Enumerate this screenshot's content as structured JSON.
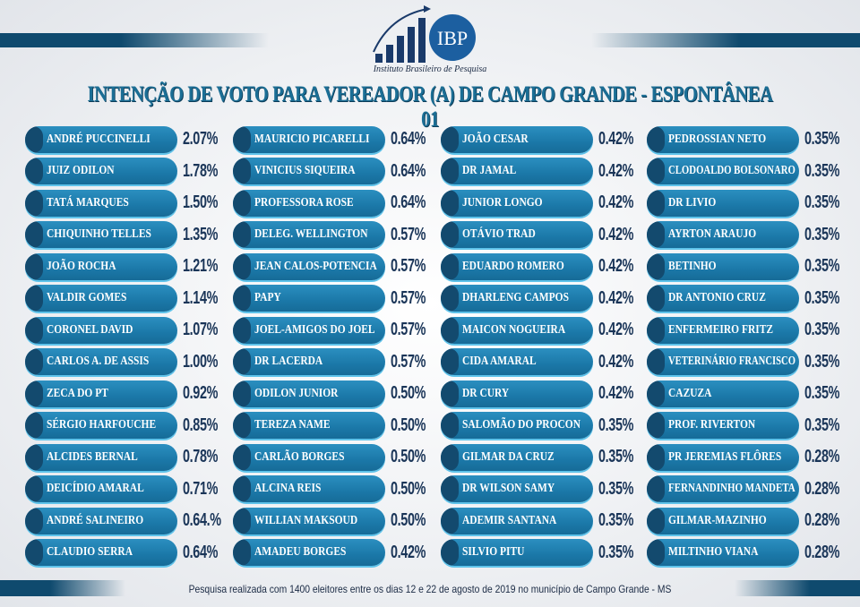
{
  "header": {
    "logo_text": "IBP",
    "institute": "Instituto Brasileiro de Pesquisa",
    "title": "INTENÇÃO DE VOTO PARA VEREADOR (A) DE CAMPO GRANDE - ESPONTÂNEA 01"
  },
  "footer": "Pesquisa realizada com 1400 eleitores entre os dias 12 e 22 de agosto de 2019 no município de Campo Grande - MS",
  "colors": {
    "pill": "#1b78a8",
    "pill_dot": "#134a6e",
    "percent": "#1a3558",
    "title": "#1b6e95",
    "bars": "#0f4a6e"
  },
  "chart_data": {
    "type": "table",
    "columns": [
      [
        [
          "ANDRÉ PUCCINELLI",
          "2.07%"
        ],
        [
          "JUIZ ODILON",
          "1.78%"
        ],
        [
          "TATÁ MARQUES",
          "1.50%"
        ],
        [
          "CHIQUINHO TELLES",
          "1.35%"
        ],
        [
          "JOÃO ROCHA",
          "1.21%"
        ],
        [
          "VALDIR GOMES",
          "1.14%"
        ],
        [
          "CORONEL DAVID",
          "1.07%"
        ],
        [
          "CARLOS A. DE ASSIS",
          "1.00%"
        ],
        [
          "ZECA DO PT",
          "0.92%"
        ],
        [
          "SÉRGIO HARFOUCHE",
          "0.85%"
        ],
        [
          "ALCIDES BERNAL",
          "0.78%"
        ],
        [
          "DEICÍDIO AMARAL",
          "0.71%"
        ],
        [
          "ANDRÉ SALINEIRO",
          "0.64.%"
        ],
        [
          "CLAUDIO SERRA",
          "0.64%"
        ]
      ],
      [
        [
          "MAURICIO PICARELLI",
          "0.64%"
        ],
        [
          "VINICIUS SIQUEIRA",
          "0.64%"
        ],
        [
          "PROFESSORA ROSE",
          "0.64%"
        ],
        [
          "DELEG. WELLINGTON",
          "0.57%"
        ],
        [
          "JEAN CALOS-POTENCIA",
          "0.57%"
        ],
        [
          "PAPY",
          "0.57%"
        ],
        [
          "JOEL-AMIGOS DO JOEL",
          "0.57%"
        ],
        [
          "DR LACERDA",
          "0.57%"
        ],
        [
          "ODILON JUNIOR",
          "0.50%"
        ],
        [
          "TEREZA NAME",
          "0.50%"
        ],
        [
          "CARLÃO BORGES",
          "0.50%"
        ],
        [
          "ALCINA REIS",
          "0.50%"
        ],
        [
          "WILLIAN MAKSOUD",
          "0.50%"
        ],
        [
          "AMADEU BORGES",
          "0.42%"
        ]
      ],
      [
        [
          "JOÃO CESAR",
          "0.42%"
        ],
        [
          "DR JAMAL",
          "0.42%"
        ],
        [
          "JUNIOR LONGO",
          "0.42%"
        ],
        [
          "OTÁVIO TRAD",
          "0.42%"
        ],
        [
          "EDUARDO ROMERO",
          "0.42%"
        ],
        [
          "DHARLENG CAMPOS",
          "0.42%"
        ],
        [
          "MAICON NOGUEIRA",
          "0.42%"
        ],
        [
          "CIDA AMARAL",
          "0.42%"
        ],
        [
          "DR CURY",
          "0.42%"
        ],
        [
          "SALOMÃO DO PROCON",
          "0.35%"
        ],
        [
          "GILMAR DA CRUZ",
          "0.35%"
        ],
        [
          "DR WILSON SAMY",
          "0.35%"
        ],
        [
          "ADEMIR SANTANA",
          "0.35%"
        ],
        [
          "SILVIO PITU",
          "0.35%"
        ]
      ],
      [
        [
          "PEDROSSIAN NETO",
          "0.35%"
        ],
        [
          "CLODOALDO BOLSONARO",
          "0.35%"
        ],
        [
          "DR LIVIO",
          "0.35%"
        ],
        [
          "AYRTON ARAUJO",
          "0.35%"
        ],
        [
          "BETINHO",
          "0.35%"
        ],
        [
          "DR ANTONIO CRUZ",
          "0.35%"
        ],
        [
          "ENFERMEIRO FRITZ",
          "0.35%"
        ],
        [
          "VETERINÁRIO FRANCISCO",
          "0.35%"
        ],
        [
          "CAZUZA",
          "0.35%"
        ],
        [
          "PROF. RIVERTON",
          "0.35%"
        ],
        [
          "PR JEREMIAS FLÔRES",
          "0.28%"
        ],
        [
          "FERNANDINHO MANDETA",
          "0.28%"
        ],
        [
          "GILMAR-MAZINHO",
          "0.28%"
        ],
        [
          "MILTINHO VIANA",
          "0.28%"
        ]
      ]
    ]
  }
}
